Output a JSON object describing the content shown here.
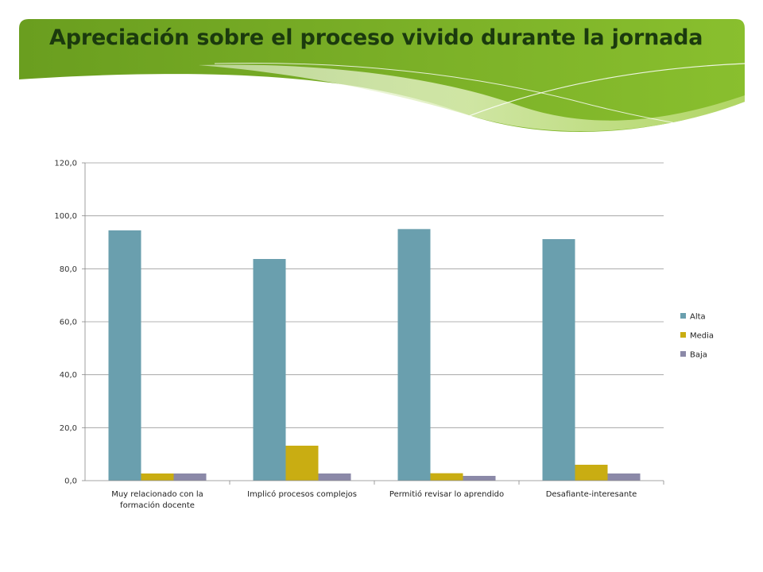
{
  "slide": {
    "title": "Apreciación sobre el proceso vivido durante la jornada"
  },
  "colors": {
    "banner_dark": "#6a9e1f",
    "banner_light": "#b9d97a",
    "title_text": "#1b3a0e"
  },
  "chart_data": {
    "type": "bar",
    "title": "",
    "xlabel": "",
    "ylabel": "",
    "categories": [
      [
        "Muy relacionado con la",
        "formación docente"
      ],
      [
        "Implicó procesos complejos"
      ],
      [
        "Permitió revisar lo aprendido"
      ],
      [
        "Desafiante-interesante"
      ]
    ],
    "series": [
      {
        "name": "Alta",
        "color": "#6a9fae",
        "values": [
          94.5,
          83.7,
          95.0,
          91.2
        ]
      },
      {
        "name": "Media",
        "color": "#c9ad12",
        "values": [
          2.7,
          13.2,
          2.8,
          6.0
        ]
      },
      {
        "name": "Baja",
        "color": "#8b89a8",
        "values": [
          2.7,
          2.7,
          1.8,
          2.7
        ]
      }
    ],
    "ylim": [
      0,
      120
    ],
    "yticks": [
      "0,0",
      "20,0",
      "40,0",
      "60,0",
      "80,0",
      "100,0",
      "120,0"
    ],
    "grid": true,
    "legend": "right"
  }
}
